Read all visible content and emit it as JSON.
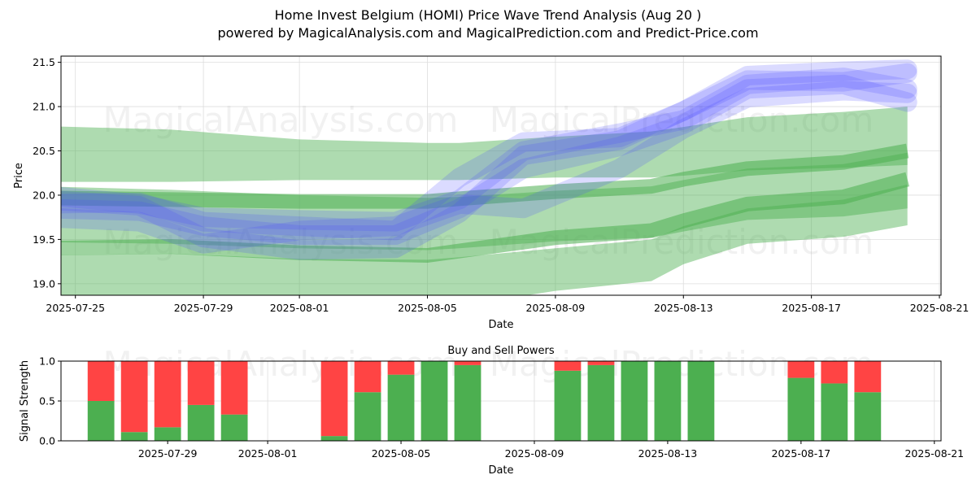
{
  "header": {
    "title": "Home Invest Belgium (HOMI) Price Wave Trend Analysis (Aug 20 )",
    "subtitle": "powered by MagicalAnalysis.com and MagicalPrediction.com and Predict-Price.com"
  },
  "watermarks": [
    "MagicalAnalysis.com",
    "MagicalPrediction.com"
  ],
  "colors": {
    "green_band": "#4caf50",
    "blue_band": "#4a4aff",
    "buy": "#4caf50",
    "sell": "#ff4444"
  },
  "chart_data": [
    {
      "type": "area",
      "title": "",
      "xlabel": "Date",
      "ylabel": "Price",
      "xlim": [
        "2025-07-24",
        "2025-08-21"
      ],
      "ylim": [
        18.87,
        21.57
      ],
      "x_ticks": [
        "2025-07-25",
        "2025-07-29",
        "2025-08-01",
        "2025-08-05",
        "2025-08-09",
        "2025-08-13",
        "2025-08-17",
        "2025-08-21"
      ],
      "y_ticks": [
        "19.0",
        "19.5",
        "20.0",
        "20.5",
        "21.0",
        "21.5"
      ],
      "grid": true,
      "green_bands": [
        {
          "dates": [
            "2025-07-24",
            "2025-07-28",
            "2025-08-01",
            "2025-08-05",
            "2025-08-06",
            "2025-08-09",
            "2025-08-12",
            "2025-08-13",
            "2025-08-15",
            "2025-08-18",
            "2025-08-20"
          ],
          "upper": [
            20.78,
            20.74,
            20.63,
            20.59,
            20.59,
            20.66,
            20.72,
            20.77,
            20.88,
            20.94,
            21.0
          ],
          "lower": [
            20.15,
            20.15,
            20.17,
            20.17,
            20.17,
            20.2,
            20.2,
            20.22,
            20.28,
            20.31,
            20.34
          ]
        },
        {
          "dates": [
            "2025-07-24",
            "2025-07-28",
            "2025-08-01",
            "2025-08-05",
            "2025-08-06",
            "2025-08-09",
            "2025-08-12",
            "2025-08-13",
            "2025-08-15",
            "2025-08-18",
            "2025-08-20"
          ],
          "upper": [
            20.1,
            20.06,
            20.0,
            19.97,
            19.98,
            20.05,
            20.1,
            20.17,
            20.3,
            20.35,
            20.48
          ],
          "lower": [
            19.47,
            19.45,
            19.4,
            19.38,
            19.4,
            19.48,
            19.52,
            19.59,
            19.72,
            19.76,
            19.85
          ]
        },
        {
          "dates": [
            "2025-07-24",
            "2025-07-28",
            "2025-08-01",
            "2025-08-05",
            "2025-08-06",
            "2025-08-09",
            "2025-08-12",
            "2025-08-13",
            "2025-08-15",
            "2025-08-18",
            "2025-08-20"
          ],
          "upper": [
            19.32,
            19.34,
            19.28,
            19.27,
            19.3,
            19.4,
            19.5,
            19.65,
            19.85,
            19.95,
            20.12
          ],
          "lower": [
            18.87,
            18.85,
            18.78,
            18.72,
            18.75,
            18.92,
            19.03,
            19.22,
            19.45,
            19.53,
            19.66
          ]
        }
      ],
      "green_lines": [
        {
          "dates": [
            "2025-07-24",
            "2025-07-28",
            "2025-08-01",
            "2025-08-05",
            "2025-08-06",
            "2025-08-09",
            "2025-08-12",
            "2025-08-13",
            "2025-08-15",
            "2025-08-18",
            "2025-08-20"
          ],
          "values": [
            19.97,
            19.95,
            19.93,
            19.93,
            19.96,
            20.04,
            20.1,
            20.18,
            20.3,
            20.37,
            20.5
          ]
        },
        {
          "dates": [
            "2025-07-24",
            "2025-07-28",
            "2025-08-01",
            "2025-08-05",
            "2025-08-06",
            "2025-08-09",
            "2025-08-12",
            "2025-08-13",
            "2025-08-15",
            "2025-08-18",
            "2025-08-20"
          ],
          "values": [
            19.4,
            19.42,
            19.35,
            19.32,
            19.37,
            19.52,
            19.6,
            19.71,
            19.9,
            19.98,
            20.18
          ]
        }
      ],
      "blue_waves": [
        {
          "dates": [
            "2025-07-24",
            "2025-07-27",
            "2025-07-29",
            "2025-08-01",
            "2025-08-04",
            "2025-08-06",
            "2025-08-08",
            "2025-08-11",
            "2025-08-13",
            "2025-08-15",
            "2025-08-18",
            "2025-08-20"
          ],
          "values": [
            19.95,
            19.88,
            19.52,
            19.38,
            19.4,
            19.8,
            20.45,
            20.62,
            20.95,
            21.3,
            21.28,
            21.38
          ]
        },
        {
          "dates": [
            "2025-07-24",
            "2025-07-27",
            "2025-07-29",
            "2025-08-01",
            "2025-08-04",
            "2025-08-06",
            "2025-08-08",
            "2025-08-11",
            "2025-08-13",
            "2025-08-15",
            "2025-08-18",
            "2025-08-20"
          ],
          "values": [
            20.0,
            19.9,
            19.75,
            19.72,
            19.7,
            19.95,
            20.5,
            20.7,
            20.85,
            21.25,
            21.33,
            21.2
          ]
        },
        {
          "dates": [
            "2025-07-24",
            "2025-07-27",
            "2025-07-29",
            "2025-08-01",
            "2025-08-04",
            "2025-08-06",
            "2025-08-08",
            "2025-08-11",
            "2025-08-13",
            "2025-08-15",
            "2025-08-18",
            "2025-08-20"
          ],
          "values": [
            19.85,
            19.82,
            19.65,
            19.55,
            19.55,
            19.85,
            20.3,
            20.55,
            20.8,
            21.2,
            21.25,
            21.05
          ]
        },
        {
          "dates": [
            "2025-07-24",
            "2025-07-27",
            "2025-07-29",
            "2025-08-01",
            "2025-08-04",
            "2025-08-06",
            "2025-08-08",
            "2025-08-11",
            "2025-08-13",
            "2025-08-15",
            "2025-08-18",
            "2025-08-20"
          ],
          "values": [
            19.75,
            19.7,
            19.45,
            19.6,
            19.65,
            19.9,
            19.85,
            20.3,
            20.75,
            21.1,
            21.18,
            21.15
          ]
        },
        {
          "dates": [
            "2025-07-24",
            "2025-07-27",
            "2025-07-29",
            "2025-08-01",
            "2025-08-04",
            "2025-08-06",
            "2025-08-08",
            "2025-08-11",
            "2025-08-13",
            "2025-08-15",
            "2025-08-18",
            "2025-08-20"
          ],
          "values": [
            19.9,
            19.92,
            19.7,
            19.65,
            19.6,
            20.2,
            20.6,
            20.65,
            20.95,
            21.35,
            21.4,
            21.42
          ]
        }
      ]
    },
    {
      "type": "bar",
      "title": "Buy and Sell Powers",
      "xlabel": "Date",
      "ylabel": "Signal Strength",
      "ylim": [
        0,
        1.0
      ],
      "y_ticks": [
        "0.0",
        "0.5",
        "1.0"
      ],
      "x_ticks": [
        "2025-07-29",
        "2025-08-01",
        "2025-08-05",
        "2025-08-09",
        "2025-08-13",
        "2025-08-17",
        "2025-08-21"
      ],
      "xlim": [
        "2025-07-26",
        "2025-08-21"
      ],
      "grid": true,
      "dates": [
        "2025-07-27",
        "2025-07-28",
        "2025-07-29",
        "2025-07-30",
        "2025-07-31",
        "2025-08-03",
        "2025-08-04",
        "2025-08-05",
        "2025-08-06",
        "2025-08-07",
        "2025-08-10",
        "2025-08-11",
        "2025-08-12",
        "2025-08-13",
        "2025-08-14",
        "2025-08-17",
        "2025-08-18",
        "2025-08-19"
      ],
      "buy": [
        0.5,
        0.11,
        0.17,
        0.45,
        0.33,
        0.06,
        0.61,
        0.83,
        1.0,
        0.95,
        0.88,
        0.95,
        1.0,
        1.0,
        1.0,
        0.79,
        0.72,
        0.61
      ],
      "sell": [
        0.5,
        0.89,
        0.83,
        0.55,
        0.67,
        0.94,
        0.39,
        0.17,
        0.0,
        0.05,
        0.12,
        0.05,
        0.0,
        0.0,
        0.0,
        0.21,
        0.28,
        0.39
      ]
    }
  ]
}
